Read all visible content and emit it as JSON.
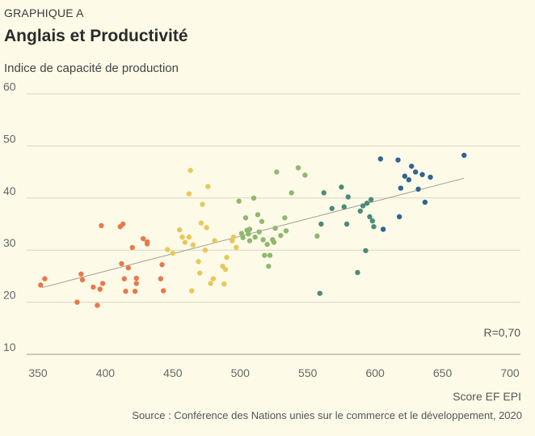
{
  "header": {
    "kicker": "GRAPHIQUE A",
    "title": "Anglais et Productivité",
    "subtitle": "Indice de capacité de production"
  },
  "footer": {
    "xlabel": "Score EF EPI",
    "source": "Source : Conférence des Nations unies sur le commerce et le développement, 2020"
  },
  "chart_data": {
    "type": "scatter",
    "title": "Anglais et Productivité",
    "xlabel": "Score EF EPI",
    "ylabel": "Indice de capacité de production",
    "xlim": [
      350,
      700
    ],
    "ylim": [
      10,
      60
    ],
    "xticks": [
      350,
      400,
      450,
      500,
      550,
      600,
      650,
      700
    ],
    "yticks": [
      10,
      20,
      30,
      40,
      50,
      60
    ],
    "x_tick_labels": [
      "350",
      "400",
      "450",
      "500",
      "550",
      "600",
      "650",
      "700"
    ],
    "y_tick_labels": [
      "10",
      "20",
      "30",
      "40",
      "50",
      "60"
    ],
    "grid": "horizontal",
    "annotation": "R=0,70",
    "trendline": {
      "x": [
        353,
        666
      ],
      "y": [
        22.8,
        43.8
      ]
    },
    "groups": [
      {
        "color": "#e8794a",
        "points": [
          [
            352,
            23.3
          ],
          [
            355,
            24.5
          ],
          [
            379,
            20.0
          ],
          [
            382,
            25.4
          ],
          [
            383,
            24.3
          ],
          [
            391,
            22.9
          ],
          [
            394,
            19.4
          ],
          [
            396,
            22.5
          ],
          [
            397,
            34.7
          ],
          [
            398,
            23.6
          ],
          [
            411,
            34.5
          ],
          [
            412,
            27.4
          ],
          [
            413,
            35.0
          ],
          [
            414,
            24.5
          ],
          [
            415,
            22.1
          ],
          [
            417,
            26.6
          ],
          [
            420,
            30.5
          ],
          [
            422,
            22.1
          ],
          [
            423,
            23.6
          ],
          [
            423,
            24.6
          ],
          [
            428,
            32.2
          ],
          [
            431,
            31.2
          ],
          [
            431,
            31.6
          ],
          [
            441,
            24.5
          ],
          [
            442,
            27.2
          ],
          [
            443,
            22.2
          ]
        ]
      },
      {
        "color": "#e8c85a",
        "points": [
          [
            446,
            30.1
          ],
          [
            450,
            29.4
          ],
          [
            455,
            33.9
          ],
          [
            457,
            32.5
          ],
          [
            459,
            31.5
          ],
          [
            462,
            32.5
          ],
          [
            462,
            40.8
          ],
          [
            463,
            45.3
          ],
          [
            464,
            22.2
          ],
          [
            465,
            31.0
          ],
          [
            469,
            27.8
          ],
          [
            470,
            25.6
          ],
          [
            471,
            35.2
          ],
          [
            472,
            38.8
          ],
          [
            474,
            30.0
          ],
          [
            475,
            34.3
          ],
          [
            476,
            42.2
          ],
          [
            478,
            23.6
          ],
          [
            480,
            24.5
          ],
          [
            481,
            31.8
          ],
          [
            487,
            26.9
          ],
          [
            488,
            23.5
          ],
          [
            489,
            26.3
          ],
          [
            490,
            28.6
          ],
          [
            494,
            31.8
          ],
          [
            495,
            32.5
          ],
          [
            497,
            30.5
          ]
        ]
      },
      {
        "color": "#8fb86e",
        "points": [
          [
            499,
            39.4
          ],
          [
            501,
            33.2
          ],
          [
            502,
            32.4
          ],
          [
            504,
            36.2
          ],
          [
            505,
            33.8
          ],
          [
            506,
            33.1
          ],
          [
            507,
            34.0
          ],
          [
            507,
            31.8
          ],
          [
            510,
            40.0
          ],
          [
            511,
            32.5
          ],
          [
            513,
            36.8
          ],
          [
            514,
            33.5
          ],
          [
            516,
            35.5
          ],
          [
            517,
            32.0
          ],
          [
            518,
            29.0
          ],
          [
            520,
            31.1
          ],
          [
            521,
            26.9
          ],
          [
            522,
            29.0
          ],
          [
            524,
            32.0
          ],
          [
            525,
            31.5
          ],
          [
            526,
            34.2
          ],
          [
            527,
            45.0
          ],
          [
            530,
            32.8
          ],
          [
            533,
            36.2
          ],
          [
            534,
            33.7
          ],
          [
            538,
            41.0
          ],
          [
            543,
            45.8
          ],
          [
            548,
            44.4
          ],
          [
            557,
            32.7
          ]
        ]
      },
      {
        "color": "#4c8a7a",
        "points": [
          [
            559,
            21.7
          ],
          [
            560,
            35.0
          ],
          [
            562,
            41.0
          ],
          [
            568,
            38.0
          ],
          [
            575,
            42.1
          ],
          [
            577,
            38.3
          ],
          [
            579,
            35.0
          ],
          [
            580,
            40.2
          ],
          [
            587,
            25.7
          ],
          [
            589,
            37.5
          ],
          [
            591,
            38.5
          ],
          [
            593,
            29.9
          ],
          [
            594,
            39.0
          ],
          [
            596,
            36.4
          ],
          [
            597,
            39.7
          ],
          [
            598,
            35.6
          ],
          [
            599,
            34.5
          ]
        ]
      },
      {
        "color": "#2f6595",
        "points": [
          [
            604,
            47.5
          ],
          [
            606,
            34.0
          ],
          [
            617,
            47.3
          ],
          [
            618,
            36.4
          ],
          [
            619,
            41.9
          ],
          [
            622,
            44.2
          ],
          [
            625,
            43.5
          ],
          [
            627,
            46.1
          ],
          [
            630,
            45.0
          ],
          [
            632,
            41.7
          ],
          [
            635,
            44.5
          ],
          [
            637,
            39.2
          ],
          [
            641,
            44.0
          ],
          [
            666,
            48.2
          ]
        ]
      }
    ]
  }
}
